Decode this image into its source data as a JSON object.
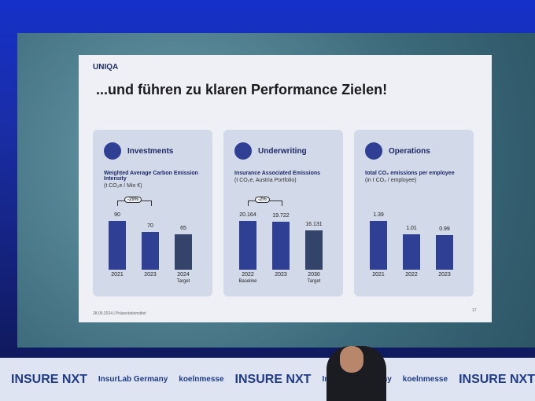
{
  "slide": {
    "logo": "UNIQA",
    "title": "...und führen zu klaren Performance Zielen!",
    "footer": "28.05.2024 | Präsentationstitel",
    "page": "17"
  },
  "chart_data": [
    {
      "type": "bar",
      "title": "Investments",
      "subtitle": "Weighted Average Carbon Emission Intensity",
      "unit": "(t CO₂e / Mio €)",
      "categories": [
        "2021",
        "2023",
        "2024"
      ],
      "sublabels": [
        null,
        null,
        "Target"
      ],
      "values": [
        90,
        70,
        65
      ],
      "colors": [
        "#2f3f94",
        "#2f3f94",
        "#34436a"
      ],
      "annotation": "-29%"
    },
    {
      "type": "bar",
      "title": "Underwriting",
      "subtitle": "Insurance Associated Emissions",
      "unit": "(t CO₂e, Austria Portfolio)",
      "categories": [
        "2022",
        "2023",
        "2030"
      ],
      "sublabels": [
        "Baseline",
        null,
        "Target"
      ],
      "values": [
        20164,
        19722,
        16131
      ],
      "value_labels": [
        "20.164",
        "19.722",
        "16.131"
      ],
      "colors": [
        "#2f3f94",
        "#2f3f94",
        "#34436a"
      ],
      "annotation": "-2%"
    },
    {
      "type": "bar",
      "title": "Operations",
      "subtitle": "total CO₂ emissions per employee",
      "unit": "(in t CO₂ / employee)",
      "categories": [
        "2021",
        "2022",
        "2023"
      ],
      "sublabels": [
        null,
        null,
        null
      ],
      "values": [
        1.39,
        1.01,
        0.99
      ],
      "colors": [
        "#2f3f94",
        "#2f3f94",
        "#2f3f94"
      ],
      "annotation": null
    }
  ],
  "banner": [
    "INSURE NXT",
    "InsurLab Germany",
    "koelnmesse",
    "INSURE NXT",
    "InsurLab Germany",
    "koelnmesse",
    "INSURE NXT"
  ]
}
